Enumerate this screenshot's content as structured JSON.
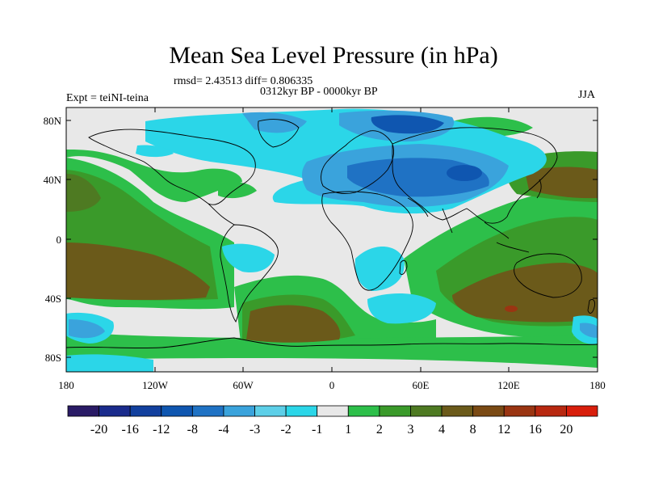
{
  "title": "Mean Sea Level Pressure (in hPa)",
  "stats_line": "rmsd= 2.43513 diff= 0.806335",
  "period_line": "0312kyr BP - 0000kyr BP",
  "experiment_label": "Expt = teiNI-teina",
  "season_label": "JJA",
  "latitude_ticks": [
    "80N",
    "40N",
    "0",
    "40S",
    "80S"
  ],
  "longitude_ticks": [
    "180",
    "120W",
    "60W",
    "0",
    "60E",
    "120E",
    "180"
  ],
  "colors": {
    "land_coast": "#000000",
    "neutral": "#e8e8e8",
    "scale": [
      "#2a1b66",
      "#1a2b8c",
      "#12409e",
      "#0f56b0",
      "#1f72c4",
      "#3aa3dc",
      "#5dcfe8",
      "#2bd6e8",
      "#e8e8e8",
      "#2dbf4a",
      "#3a9a2a",
      "#4e7a22",
      "#6b5a1a",
      "#7a4a14",
      "#9a3512",
      "#b82810",
      "#d81e0c"
    ]
  },
  "colorbar_labels": [
    "-20",
    "-16",
    "-12",
    "-8",
    "-4",
    "-3",
    "-2",
    "-1",
    "1",
    "2",
    "3",
    "4",
    "8",
    "12",
    "16",
    "20"
  ]
}
